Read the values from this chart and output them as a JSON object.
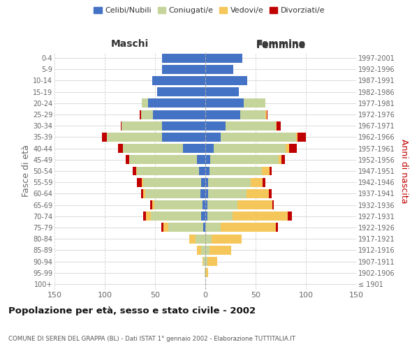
{
  "age_groups": [
    "100+",
    "95-99",
    "90-94",
    "85-89",
    "80-84",
    "75-79",
    "70-74",
    "65-69",
    "60-64",
    "55-59",
    "50-54",
    "45-49",
    "40-44",
    "35-39",
    "30-34",
    "25-29",
    "20-24",
    "15-19",
    "10-14",
    "5-9",
    "0-4"
  ],
  "birth_years": [
    "≤ 1901",
    "1902-1906",
    "1907-1911",
    "1912-1916",
    "1917-1921",
    "1922-1926",
    "1927-1931",
    "1932-1936",
    "1937-1941",
    "1942-1946",
    "1947-1951",
    "1952-1956",
    "1957-1961",
    "1962-1966",
    "1967-1971",
    "1972-1976",
    "1977-1981",
    "1982-1986",
    "1987-1991",
    "1992-1996",
    "1997-2001"
  ],
  "male": {
    "celibi": [
      0,
      0,
      0,
      0,
      0,
      2,
      4,
      3,
      5,
      4,
      6,
      8,
      22,
      43,
      43,
      52,
      57,
      48,
      53,
      43,
      43
    ],
    "coniugati": [
      0,
      1,
      2,
      4,
      10,
      35,
      50,
      48,
      55,
      58,
      62,
      68,
      60,
      55,
      40,
      12,
      6,
      0,
      0,
      0,
      0
    ],
    "vedovi": [
      0,
      0,
      1,
      4,
      6,
      5,
      5,
      2,
      2,
      1,
      1,
      0,
      0,
      0,
      0,
      0,
      0,
      0,
      0,
      0,
      0
    ],
    "divorziati": [
      0,
      0,
      0,
      0,
      0,
      2,
      3,
      2,
      2,
      5,
      3,
      3,
      5,
      5,
      1,
      1,
      0,
      0,
      0,
      0,
      0
    ]
  },
  "female": {
    "nubili": [
      0,
      0,
      0,
      0,
      0,
      0,
      2,
      2,
      3,
      3,
      4,
      5,
      8,
      15,
      20,
      35,
      38,
      33,
      42,
      28,
      37
    ],
    "coniugate": [
      0,
      0,
      2,
      4,
      6,
      15,
      25,
      30,
      38,
      42,
      52,
      68,
      72,
      75,
      50,
      25,
      22,
      0,
      0,
      0,
      0
    ],
    "vedove": [
      0,
      3,
      10,
      22,
      30,
      55,
      55,
      35,
      22,
      12,
      8,
      3,
      3,
      2,
      1,
      1,
      0,
      0,
      0,
      0,
      0
    ],
    "divorziate": [
      0,
      0,
      0,
      0,
      0,
      2,
      4,
      1,
      3,
      3,
      2,
      3,
      8,
      8,
      4,
      1,
      0,
      0,
      0,
      0,
      0
    ]
  },
  "colors": {
    "celibi": "#4472C4",
    "coniugati": "#C5D49A",
    "vedovi": "#F5C75B",
    "divorziati": "#C00000"
  },
  "xlim": 150,
  "title": "Popolazione per età, sesso e stato civile - 2002",
  "subtitle": "COMUNE DI SEREN DEL GRAPPA (BL) - Dati ISTAT 1° gennaio 2002 - Elaborazione TUTTITALIA.IT",
  "ylabel_left": "Fasce di età",
  "ylabel_right": "Anni di nascita",
  "label_maschi": "Maschi",
  "label_femmine": "Femmine",
  "legend_labels": [
    "Celibi/Nubili",
    "Coniugati/e",
    "Vedovi/e",
    "Divorziati/e"
  ],
  "bg_color": "#FFFFFF",
  "grid_color": "#CCCCCC",
  "bar_height": 0.8
}
